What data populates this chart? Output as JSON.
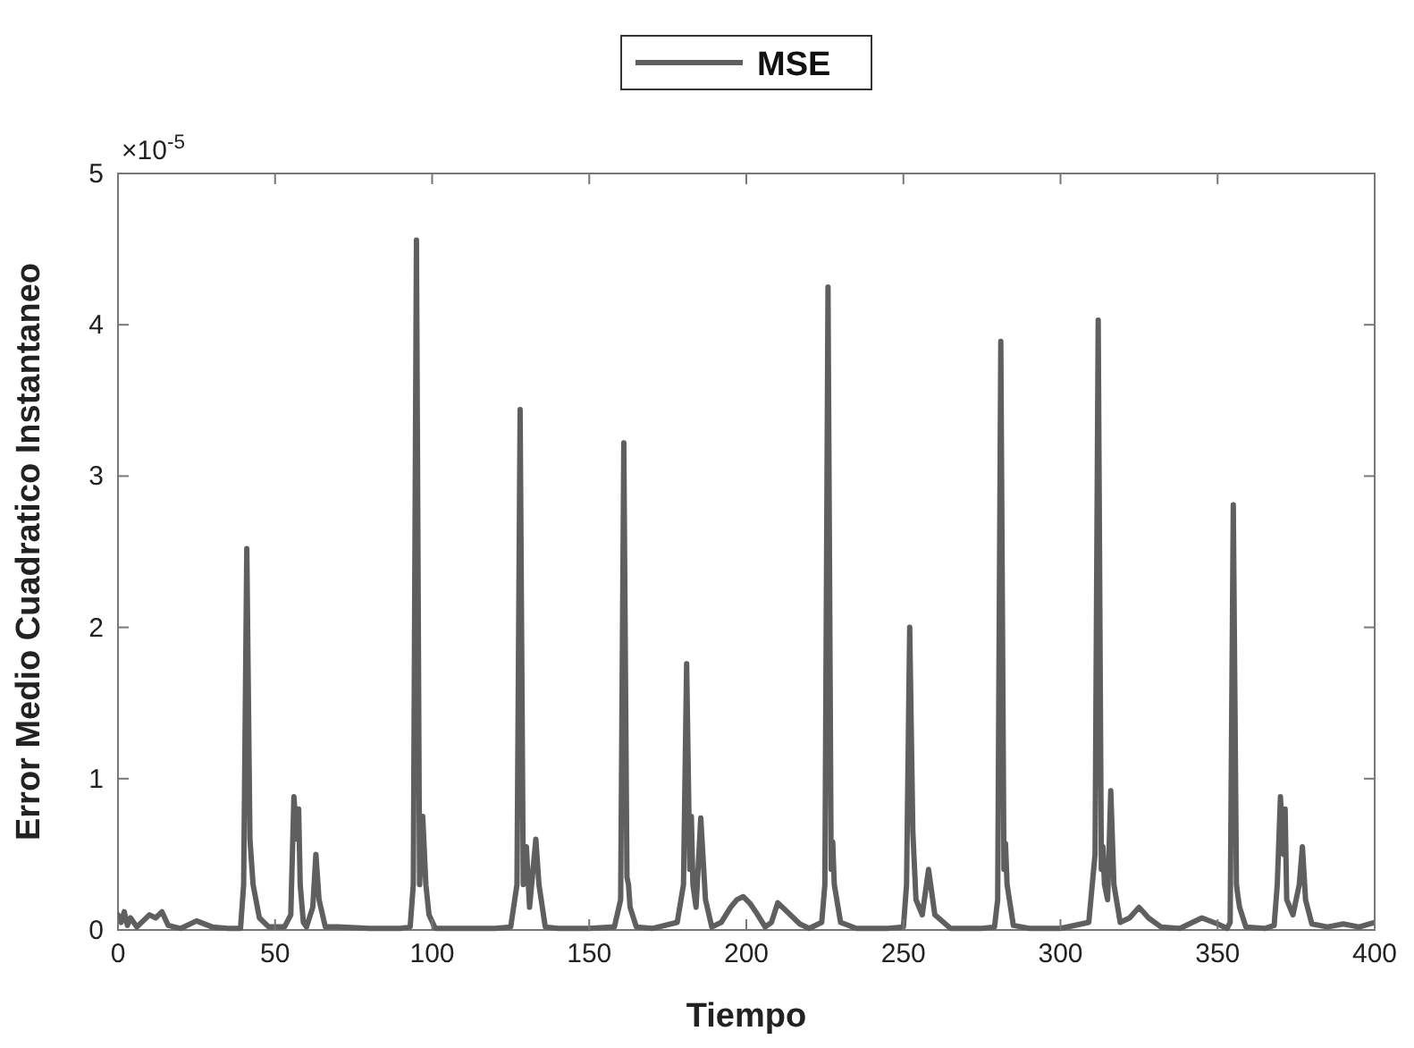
{
  "chart_data": {
    "type": "line",
    "xlabel": "Tiempo",
    "ylabel": "Error Medio Cuadratico Instantaneo",
    "annotations": [
      "×10$^{-5}$"
    ],
    "legend": "top",
    "xlim": [
      0,
      400
    ],
    "ylim": [
      0,
      5
    ],
    "xticks": [
      0,
      50,
      100,
      150,
      200,
      250,
      300,
      350,
      400
    ],
    "yticks": [
      0,
      1,
      2,
      3,
      4,
      5
    ],
    "series": [
      {
        "name": "MSE",
        "color": "#5f5f5f",
        "x": [
          0,
          1,
          2,
          3,
          4,
          6,
          8,
          10,
          12,
          14,
          16,
          20,
          25,
          30,
          35,
          39,
          40,
          41,
          42,
          43,
          45,
          48,
          53,
          55,
          56,
          57,
          57.5,
          58,
          59,
          60,
          62,
          63,
          64,
          66,
          70,
          80,
          90,
          93,
          94,
          95,
          96,
          97,
          98,
          99,
          101,
          110,
          120,
          125,
          127,
          128,
          129,
          130,
          131,
          133,
          134,
          136,
          140,
          150,
          158,
          160,
          161,
          162,
          162.5,
          163,
          165,
          170,
          178,
          180,
          181,
          182,
          182.5,
          183,
          184,
          185.5,
          187,
          189,
          192,
          195,
          197,
          199,
          201,
          203,
          206,
          208,
          210,
          213,
          217,
          220,
          224,
          225,
          226,
          227,
          227.5,
          228,
          230,
          235,
          245,
          250,
          251,
          252,
          253,
          254,
          256,
          258,
          260,
          265,
          275,
          279,
          280,
          281,
          282,
          282.5,
          283,
          285,
          290,
          300,
          309,
          311,
          312,
          313,
          313.5,
          314,
          315,
          316,
          317,
          319,
          322,
          325,
          328,
          332,
          338,
          345,
          350,
          353,
          354,
          355,
          356,
          356.5,
          357,
          359,
          365,
          368,
          369,
          370,
          371,
          371.5,
          372,
          374,
          376,
          377,
          378,
          380,
          385,
          390,
          395,
          400
        ],
        "values": [
          0.1,
          0.05,
          0.12,
          0.03,
          0.08,
          0.02,
          0.06,
          0.1,
          0.08,
          0.12,
          0.03,
          0.01,
          0.06,
          0.02,
          0.01,
          0.01,
          0.3,
          2.52,
          0.6,
          0.3,
          0.08,
          0.02,
          0.02,
          0.1,
          0.88,
          0.6,
          0.8,
          0.3,
          0.05,
          0.02,
          0.15,
          0.5,
          0.2,
          0.02,
          0.02,
          0.01,
          0.01,
          0.02,
          0.3,
          4.56,
          0.3,
          0.75,
          0.3,
          0.1,
          0.01,
          0.01,
          0.01,
          0.02,
          0.3,
          3.44,
          0.3,
          0.55,
          0.15,
          0.6,
          0.3,
          0.02,
          0.01,
          0.01,
          0.02,
          0.2,
          3.22,
          0.35,
          0.3,
          0.15,
          0.02,
          0.01,
          0.05,
          0.3,
          1.76,
          0.4,
          0.75,
          0.3,
          0.15,
          0.74,
          0.2,
          0.02,
          0.05,
          0.15,
          0.2,
          0.22,
          0.18,
          0.12,
          0.02,
          0.05,
          0.18,
          0.12,
          0.04,
          0.01,
          0.05,
          0.3,
          4.25,
          0.4,
          0.58,
          0.3,
          0.05,
          0.01,
          0.01,
          0.02,
          0.3,
          2.0,
          0.65,
          0.2,
          0.1,
          0.4,
          0.1,
          0.01,
          0.01,
          0.02,
          0.2,
          3.89,
          0.4,
          0.57,
          0.3,
          0.03,
          0.01,
          0.01,
          0.05,
          0.5,
          4.03,
          0.4,
          0.55,
          0.3,
          0.2,
          0.92,
          0.3,
          0.05,
          0.08,
          0.15,
          0.08,
          0.02,
          0.01,
          0.08,
          0.04,
          0.01,
          0.05,
          2.81,
          0.3,
          0.22,
          0.15,
          0.02,
          0.01,
          0.03,
          0.3,
          0.88,
          0.5,
          0.8,
          0.2,
          0.1,
          0.3,
          0.55,
          0.2,
          0.04,
          0.02,
          0.04,
          0.02,
          0.05
        ]
      }
    ]
  }
}
